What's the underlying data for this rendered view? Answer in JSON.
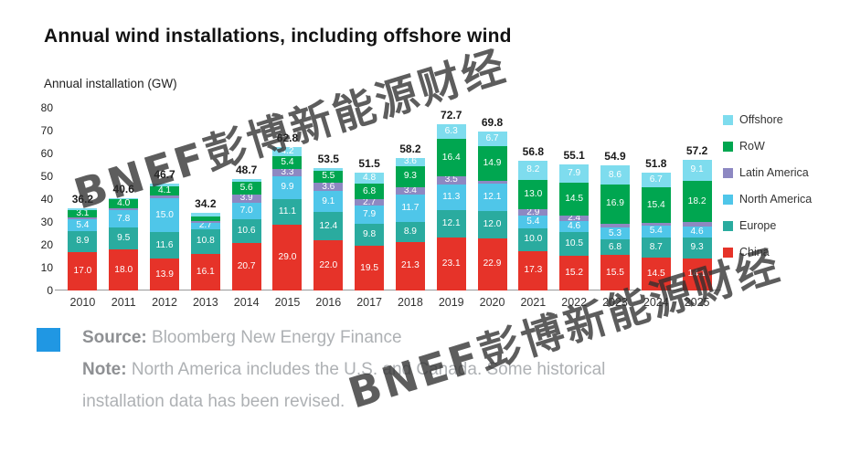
{
  "page": {
    "title": "Annual wind installations, including offshore wind",
    "watermark": "BNEF彭博新能源财经"
  },
  "chart_data": {
    "type": "bar",
    "stacked": true,
    "title": "Annual wind installations, including offshore wind",
    "ylabel": "Annual installation (GW)",
    "xlabel": "",
    "ylim": [
      0,
      80
    ],
    "yticks": [
      0,
      10,
      20,
      30,
      40,
      50,
      60,
      70,
      80
    ],
    "grid": false,
    "legend_position": "right",
    "categories": [
      "2010",
      "2011",
      "2012",
      "2013",
      "2014",
      "2015",
      "2016",
      "2017",
      "2018",
      "2019",
      "2020",
      "2021",
      "2022",
      "2023",
      "2024",
      "2025"
    ],
    "totals": [
      36.2,
      40.6,
      46.7,
      34.2,
      48.7,
      62.8,
      53.5,
      51.5,
      58.2,
      72.7,
      69.8,
      56.8,
      55.1,
      54.9,
      51.8,
      57.2
    ],
    "series": [
      {
        "name": "China",
        "color": "#e63329",
        "values": [
          17.0,
          18.0,
          13.9,
          16.1,
          20.7,
          29.0,
          22.0,
          19.5,
          21.3,
          23.1,
          22.9,
          17.3,
          15.2,
          15.5,
          14.5,
          14.1
        ]
      },
      {
        "name": "Europe",
        "color": "#2aab9f",
        "values": [
          8.9,
          9.5,
          11.6,
          10.8,
          10.6,
          11.1,
          12.4,
          9.8,
          8.9,
          12.1,
          12.0,
          10.0,
          10.5,
          6.8,
          8.7,
          9.3
        ]
      },
      {
        "name": "North America",
        "color": "#4fc6e9",
        "values": [
          5.4,
          7.8,
          15.0,
          2.7,
          7.0,
          9.9,
          9.1,
          7.9,
          11.7,
          11.3,
          12.1,
          5.4,
          4.6,
          5.3,
          5.4,
          4.6
        ]
      },
      {
        "name": "Latin America",
        "color": "#8d88c2",
        "values": [
          0.7,
          0.8,
          1.0,
          1.0,
          3.9,
          3.3,
          3.6,
          2.7,
          3.4,
          3.5,
          1.2,
          2.9,
          2.4,
          1.8,
          1.1,
          1.9
        ]
      },
      {
        "name": "RoW",
        "color": "#00a650",
        "values": [
          3.1,
          4.0,
          4.1,
          1.9,
          5.6,
          5.4,
          5.5,
          6.8,
          9.3,
          16.4,
          14.9,
          13.0,
          14.5,
          16.9,
          15.4,
          18.2
        ]
      },
      {
        "name": "Offshore",
        "color": "#7edcee",
        "values": [
          1.1,
          0.5,
          1.1,
          1.7,
          0.9,
          4.2,
          0.9,
          4.8,
          3.6,
          6.3,
          6.7,
          8.2,
          7.9,
          8.6,
          6.7,
          9.1
        ]
      }
    ],
    "legend_order": [
      "Offshore",
      "RoW",
      "Latin America",
      "North America",
      "Europe",
      "China"
    ]
  },
  "footer": {
    "source_label": "Source:",
    "source_text": "Bloomberg New Energy Finance",
    "note_label": "Note:",
    "note_text": "North America includes the U.S. and Canada. Some historical installation data has been revised."
  }
}
